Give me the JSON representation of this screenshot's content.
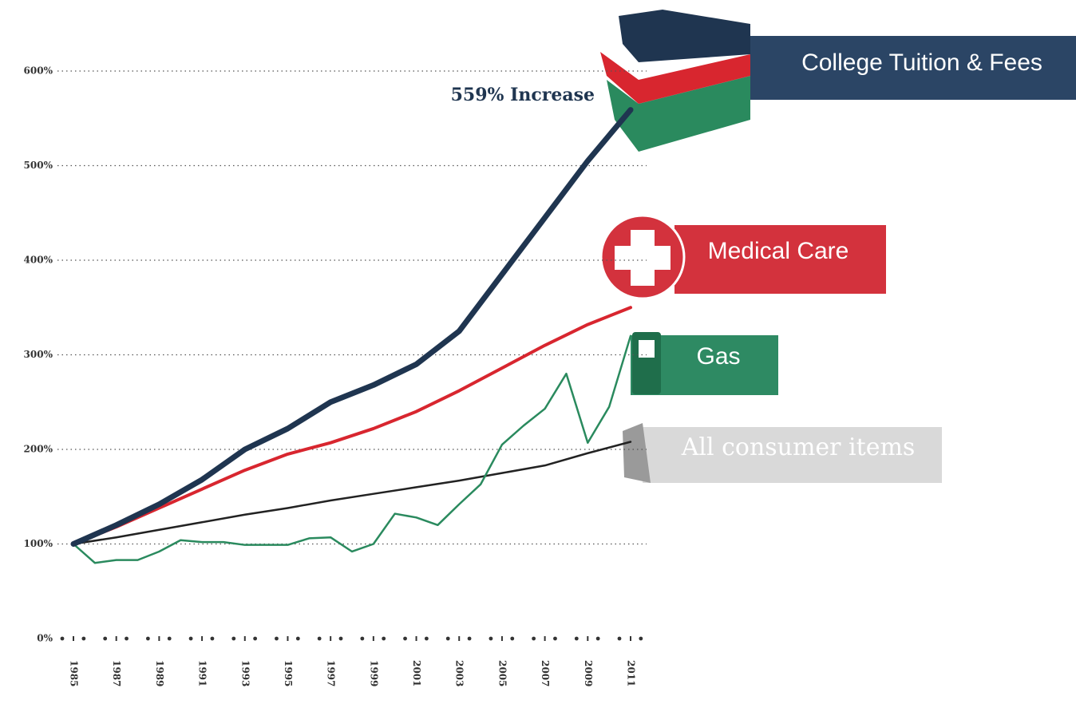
{
  "chart_data": {
    "type": "line",
    "annotation": "559% Increase",
    "xlim": [
      1985,
      2011
    ],
    "xticks": [
      1985,
      1987,
      1989,
      1991,
      1993,
      1995,
      1997,
      1999,
      2001,
      2003,
      2005,
      2007,
      2009,
      2011
    ],
    "ylim": [
      0,
      600
    ],
    "yticks": [
      {
        "value": 0,
        "label": "0%"
      },
      {
        "value": 100,
        "label": "100%"
      },
      {
        "value": 200,
        "label": "200%"
      },
      {
        "value": 300,
        "label": "300%"
      },
      {
        "value": 400,
        "label": "400%"
      },
      {
        "value": 500,
        "label": "500%"
      },
      {
        "value": 600,
        "label": "600%"
      }
    ],
    "grid": true,
    "series": [
      {
        "name": "College Tuition & Fees",
        "color": "#1f3550",
        "x": [
          1985,
          1987,
          1989,
          1991,
          1993,
          1995,
          1997,
          1999,
          2001,
          2003,
          2005,
          2007,
          2009,
          2011
        ],
        "values": [
          100,
          120,
          142,
          168,
          200,
          222,
          250,
          268,
          290,
          325,
          385,
          445,
          505,
          559
        ]
      },
      {
        "name": "Medical Care",
        "color": "#d8262f",
        "x": [
          1985,
          1987,
          1989,
          1991,
          1993,
          1995,
          1997,
          1999,
          2001,
          2003,
          2005,
          2007,
          2009,
          2011
        ],
        "values": [
          100,
          118,
          138,
          158,
          178,
          195,
          207,
          222,
          240,
          262,
          286,
          310,
          332,
          350
        ]
      },
      {
        "name": "Gas",
        "color": "#2a8a5e",
        "x": [
          1985,
          1986,
          1987,
          1988,
          1989,
          1990,
          1991,
          1992,
          1993,
          1994,
          1995,
          1996,
          1997,
          1998,
          1999,
          2000,
          2001,
          2002,
          2003,
          2004,
          2005,
          2006,
          2007,
          2008,
          2009,
          2010,
          2011
        ],
        "values": [
          100,
          80,
          83,
          83,
          92,
          104,
          102,
          102,
          99,
          99,
          99,
          106,
          107,
          92,
          100,
          132,
          128,
          120,
          142,
          163,
          205,
          225,
          243,
          280,
          207,
          245,
          320
        ]
      },
      {
        "name": "All consumer items",
        "color": "#222222",
        "x": [
          1985,
          1987,
          1989,
          1991,
          1993,
          1995,
          1997,
          1999,
          2001,
          2003,
          2005,
          2007,
          2009,
          2011
        ],
        "values": [
          100,
          107,
          115,
          123,
          131,
          138,
          146,
          153,
          160,
          167,
          175,
          183,
          196,
          208
        ]
      }
    ]
  }
}
